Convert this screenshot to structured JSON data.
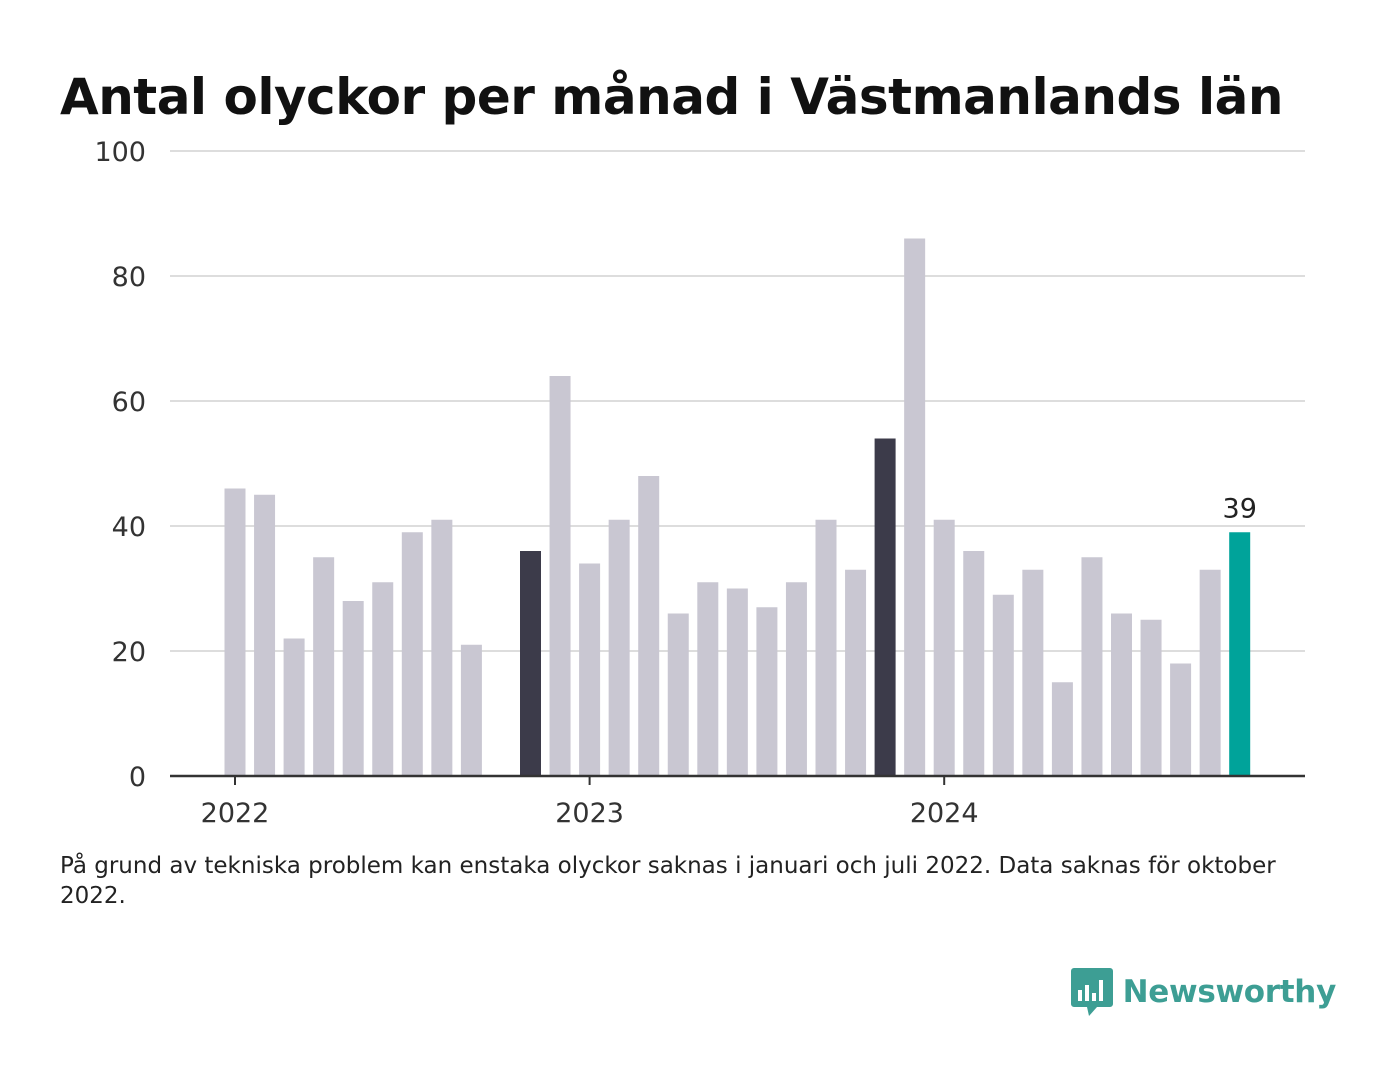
{
  "title": "Antal olyckor per månad i Västmanlands län",
  "footnote": "På grund av tekniska problem kan enstaka olyckor saknas i januari och juli 2022. Data saknas för oktober 2022.",
  "brand": {
    "name": "Newsworthy",
    "icon": "newsworthy-logo-icon",
    "color": "#3d9e94"
  },
  "colors": {
    "bar": "#c9c7d2",
    "highlight": "#3c3b4a",
    "latest": "#00a39a",
    "grid": "#dddddd",
    "axis": "#333333"
  },
  "chart_data": {
    "type": "bar",
    "x_tick_labels": [
      "2022",
      "2023",
      "2024"
    ],
    "categories": [
      "2022-01",
      "2022-02",
      "2022-03",
      "2022-04",
      "2022-05",
      "2022-06",
      "2022-07",
      "2022-08",
      "2022-09",
      "2022-10",
      "2022-11",
      "2022-12",
      "2023-01",
      "2023-02",
      "2023-03",
      "2023-04",
      "2023-05",
      "2023-06",
      "2023-07",
      "2023-08",
      "2023-09",
      "2023-10",
      "2023-11",
      "2023-12",
      "2024-01",
      "2024-02",
      "2024-03",
      "2024-04",
      "2024-05",
      "2024-06",
      "2024-07",
      "2024-08",
      "2024-09",
      "2024-10",
      "2024-11"
    ],
    "values": [
      46,
      45,
      22,
      35,
      28,
      31,
      39,
      41,
      21,
      null,
      36,
      64,
      34,
      41,
      48,
      26,
      31,
      30,
      27,
      31,
      41,
      33,
      54,
      86,
      41,
      36,
      29,
      33,
      15,
      35,
      26,
      25,
      18,
      33,
      39
    ],
    "highlighted": [
      "2022-11",
      "2023-11"
    ],
    "latest": "2024-11",
    "value_label": "39",
    "ylim": [
      0,
      100
    ],
    "yticks": [
      0,
      20,
      40,
      60,
      80,
      100
    ],
    "grid": true
  }
}
